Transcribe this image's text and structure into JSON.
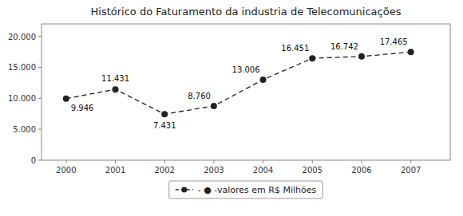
{
  "chart_data": {
    "type": "line",
    "title": "Histórico do Faturamento da industria de Telecomunicações",
    "x": [
      2000,
      2001,
      2002,
      2003,
      2004,
      2005,
      2006,
      2007
    ],
    "series": [
      {
        "name": "- ● -valores em R$ Milhões",
        "color": "#222222",
        "marker": "circle",
        "line_style": "dashed",
        "values": [
          9946,
          11431,
          7431,
          8760,
          13006,
          16451,
          16742,
          17465
        ],
        "value_labels": [
          "9.946",
          "11.431",
          "7.431",
          "8.760",
          "13.006",
          "16.451",
          "16.742",
          "17.465"
        ]
      }
    ],
    "xlim": [
      1999.5,
      2007.8
    ],
    "xticks": [
      2000,
      2001,
      2002,
      2003,
      2004,
      2005,
      2006,
      2007
    ],
    "ylim": [
      0,
      22000
    ],
    "yticks": [
      0,
      {
        "value": 5000,
        "label": "5.000"
      },
      {
        "value": 10000,
        "label": "10.000"
      },
      {
        "value": 15000,
        "label": "15.000"
      },
      {
        "value": 20000,
        "label": "20.000"
      }
    ],
    "grid": false,
    "legend": "bottom",
    "data_labels": true
  }
}
